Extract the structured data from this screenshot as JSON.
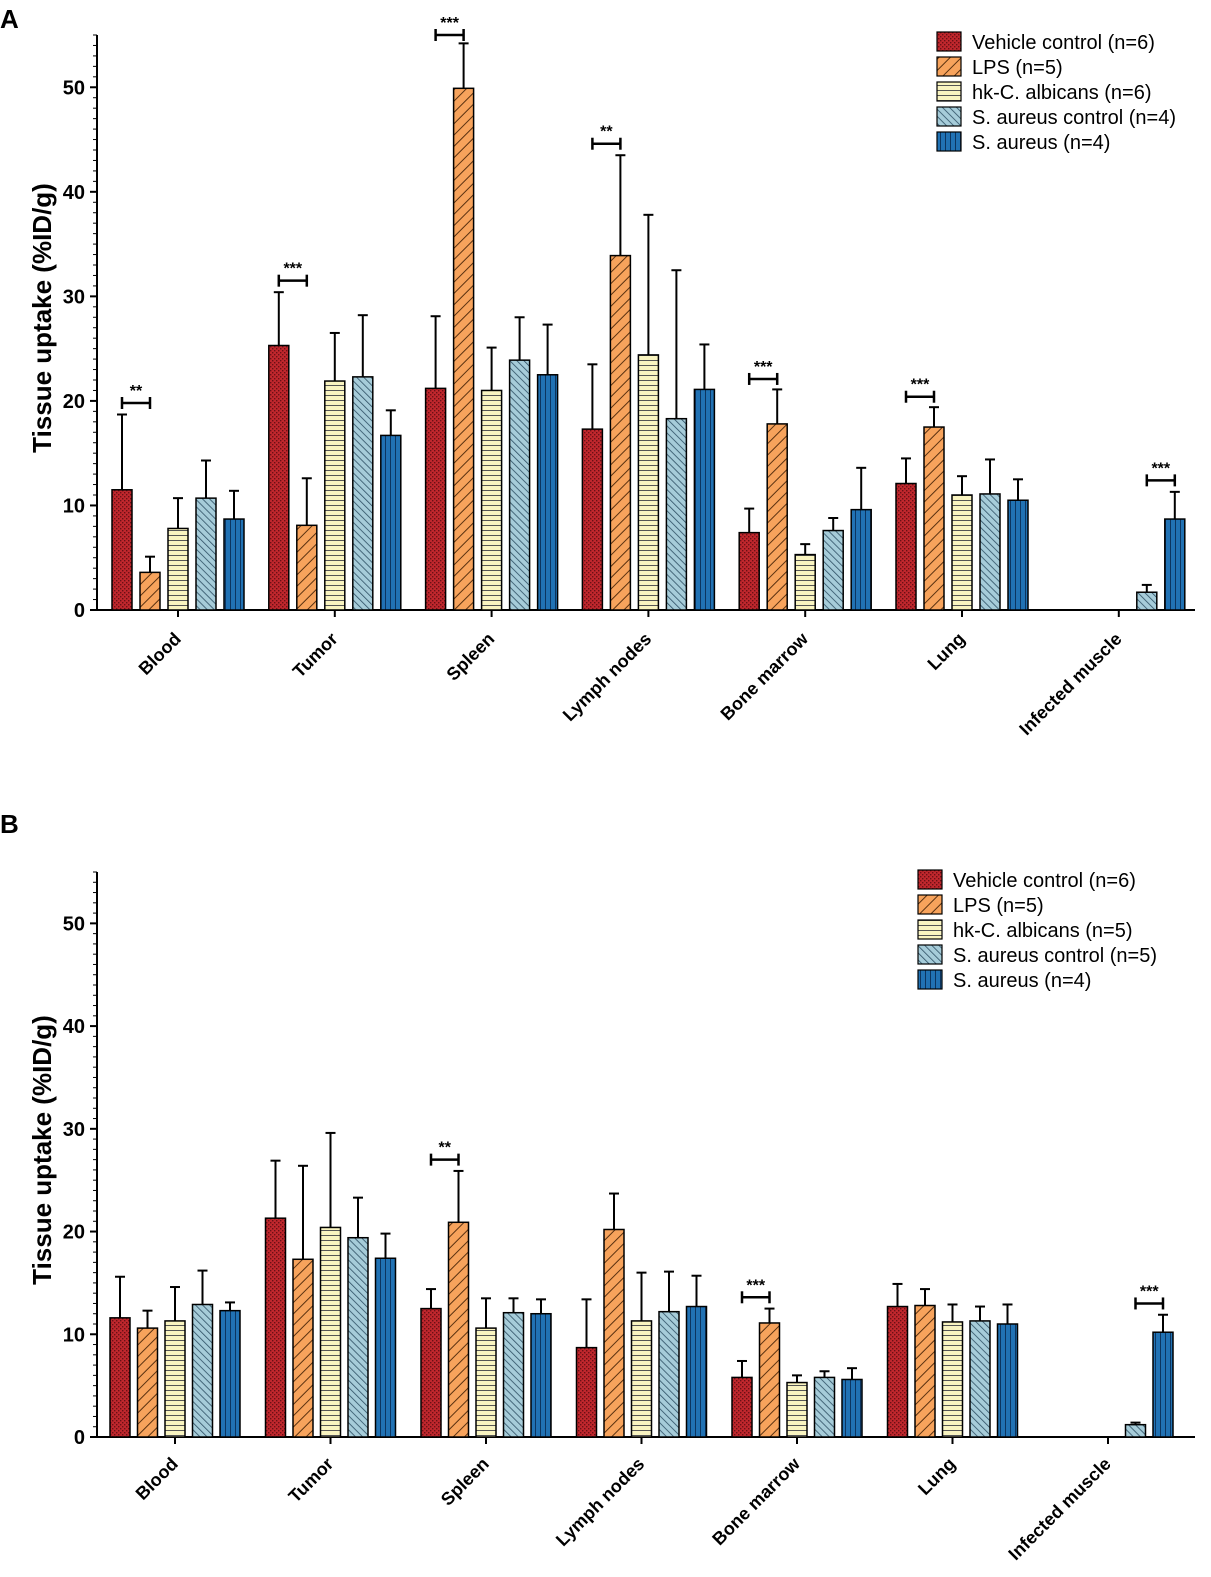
{
  "colors": {
    "vehicle": "#c0272d",
    "lps": "#f7a35c",
    "hkca": "#f9f4c0",
    "saur_ctrl": "#a6ccd9",
    "saur": "#2172b4"
  },
  "chart_data": [
    {
      "panel": "A",
      "type": "bar",
      "ylabel": "Tissue uptake (%ID/g)",
      "ylim": [
        0,
        55
      ],
      "yticks": [
        "0",
        "10",
        "20",
        "30",
        "40",
        "50"
      ],
      "categories": [
        "Blood",
        "Tumor",
        "Spleen",
        "Lymph nodes",
        "Bone marrow",
        "Lung",
        "Infected muscle"
      ],
      "series": [
        {
          "key": "vehicle",
          "name": "Vehicle control (n=6)",
          "values": [
            11.5,
            25.3,
            21.2,
            17.3,
            7.4,
            12.1,
            null
          ],
          "errors": [
            7.2,
            5.1,
            6.9,
            6.2,
            2.3,
            2.4,
            null
          ]
        },
        {
          "key": "lps",
          "name": "LPS (n=5)",
          "values": [
            3.6,
            8.1,
            49.9,
            33.9,
            17.8,
            17.5,
            null
          ],
          "errors": [
            1.5,
            4.5,
            4.3,
            9.6,
            3.3,
            1.9,
            null
          ]
        },
        {
          "key": "hkca",
          "name": "hk-C. albicans (n=6)",
          "values": [
            7.8,
            21.9,
            21.0,
            24.4,
            5.3,
            11.0,
            null
          ],
          "errors": [
            2.9,
            4.6,
            4.1,
            13.4,
            1.0,
            1.8,
            null
          ]
        },
        {
          "key": "saur_ctrl",
          "name": "S. aureus control (n=4)",
          "values": [
            10.7,
            22.3,
            23.9,
            18.3,
            7.6,
            11.1,
            1.7
          ],
          "errors": [
            3.6,
            5.9,
            4.1,
            14.2,
            1.2,
            3.3,
            0.7
          ]
        },
        {
          "key": "saur",
          "name": "S. aureus (n=4)",
          "values": [
            8.7,
            16.7,
            22.5,
            21.1,
            9.6,
            10.5,
            8.7
          ],
          "errors": [
            2.7,
            2.4,
            4.8,
            4.3,
            4.0,
            2.0,
            2.6
          ]
        }
      ],
      "significance": [
        {
          "category": "Blood",
          "from": "vehicle",
          "to": "lps",
          "y": 19.8,
          "label": "**"
        },
        {
          "category": "Tumor",
          "from": "vehicle",
          "to": "lps",
          "y": 31.5,
          "label": "***"
        },
        {
          "category": "Spleen",
          "from": "vehicle",
          "to": "lps",
          "y": 55.0,
          "label": "***"
        },
        {
          "category": "Lymph nodes",
          "from": "vehicle",
          "to": "lps",
          "y": 44.6,
          "label": "**"
        },
        {
          "category": "Bone marrow",
          "from": "vehicle",
          "to": "lps",
          "y": 22.1,
          "label": "***"
        },
        {
          "category": "Lung",
          "from": "vehicle",
          "to": "lps",
          "y": 20.4,
          "label": "***"
        },
        {
          "category": "Infected muscle",
          "from": "saur_ctrl",
          "to": "saur",
          "y": 12.4,
          "label": "***"
        }
      ]
    },
    {
      "panel": "B",
      "type": "bar",
      "ylabel": "Tissue uptake (%ID/g)",
      "ylim": [
        0,
        55
      ],
      "yticks": [
        "0",
        "10",
        "20",
        "30",
        "40",
        "50"
      ],
      "categories": [
        "Blood",
        "Tumor",
        "Spleen",
        "Lymph nodes",
        "Bone marrow",
        "Lung",
        "Infected muscle"
      ],
      "series": [
        {
          "key": "vehicle",
          "name": "Vehicle control (n=6)",
          "values": [
            11.6,
            21.3,
            12.5,
            8.7,
            5.8,
            12.7,
            null
          ],
          "errors": [
            4.0,
            5.6,
            1.9,
            4.7,
            1.6,
            2.2,
            null
          ]
        },
        {
          "key": "lps",
          "name": "LPS (n=5)",
          "values": [
            10.6,
            17.3,
            20.9,
            20.2,
            11.1,
            12.8,
            null
          ],
          "errors": [
            1.7,
            9.1,
            5.0,
            3.5,
            1.4,
            1.6,
            null
          ]
        },
        {
          "key": "hkca",
          "name": "hk-C. albicans (n=5)",
          "values": [
            11.3,
            20.4,
            10.6,
            11.3,
            5.3,
            11.2,
            null
          ],
          "errors": [
            3.3,
            9.2,
            2.9,
            4.7,
            0.7,
            1.7,
            null
          ]
        },
        {
          "key": "saur_ctrl",
          "name": "S. aureus control (n=5)",
          "values": [
            12.9,
            19.4,
            12.1,
            12.2,
            5.8,
            11.3,
            1.2
          ],
          "errors": [
            3.3,
            3.9,
            1.4,
            3.9,
            0.6,
            1.4,
            0.2
          ]
        },
        {
          "key": "saur",
          "name": "S. aureus (n=4)",
          "values": [
            12.3,
            17.4,
            12.0,
            12.7,
            5.6,
            11.0,
            10.2
          ],
          "errors": [
            0.8,
            2.4,
            1.4,
            3.0,
            1.1,
            1.9,
            1.7
          ]
        }
      ],
      "significance": [
        {
          "category": "Spleen",
          "from": "vehicle",
          "to": "lps",
          "y": 27.0,
          "label": "**"
        },
        {
          "category": "Bone marrow",
          "from": "vehicle",
          "to": "lps",
          "y": 13.6,
          "label": "***"
        },
        {
          "category": "Infected muscle",
          "from": "saur_ctrl",
          "to": "saur",
          "y": 13.0,
          "label": "***"
        }
      ]
    }
  ]
}
